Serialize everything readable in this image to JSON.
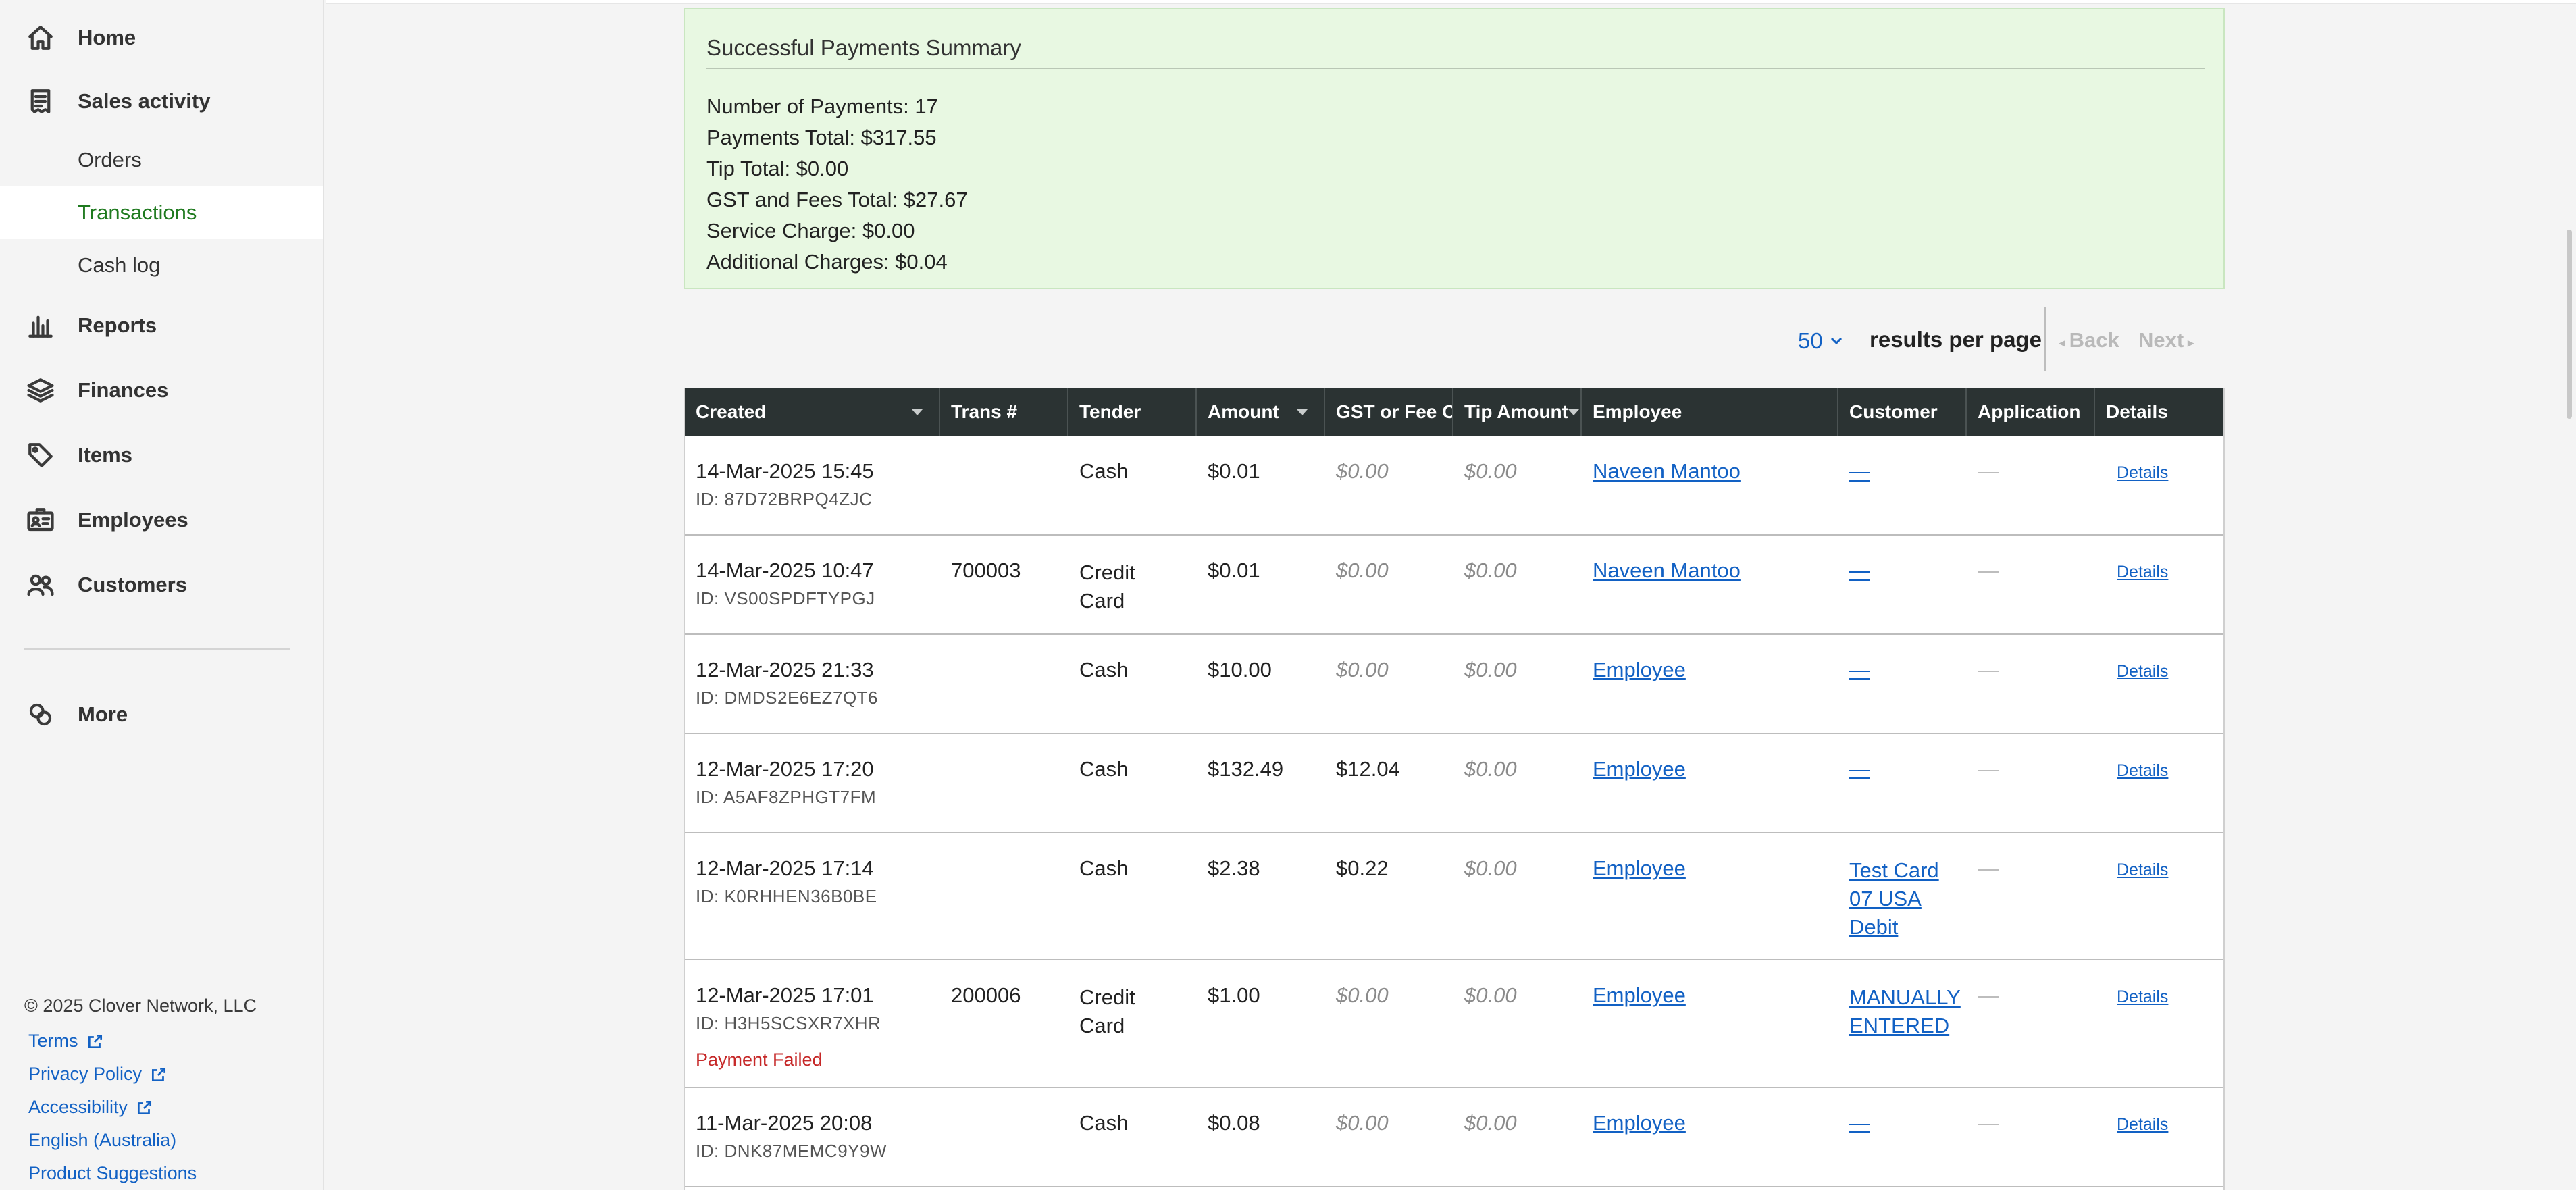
{
  "sidebar": {
    "items": [
      {
        "key": "home",
        "label": "Home",
        "icon": "home-icon"
      },
      {
        "key": "sales",
        "label": "Sales activity",
        "icon": "receipt-icon"
      },
      {
        "key": "reports",
        "label": "Reports",
        "icon": "bar-chart-icon"
      },
      {
        "key": "finances",
        "label": "Finances",
        "icon": "layers-icon"
      },
      {
        "key": "items",
        "label": "Items",
        "icon": "tag-icon"
      },
      {
        "key": "employees",
        "label": "Employees",
        "icon": "id-card-icon"
      },
      {
        "key": "customers",
        "label": "Customers",
        "icon": "people-icon"
      },
      {
        "key": "more",
        "label": "More",
        "icon": "apps-icon"
      }
    ],
    "sales_sub": [
      {
        "label": "Orders",
        "active": false
      },
      {
        "label": "Transactions",
        "active": true
      },
      {
        "label": "Cash log",
        "active": false
      }
    ],
    "footer": {
      "copyright": "© 2025 Clover Network, LLC",
      "links": [
        "Terms",
        "Privacy Policy",
        "Accessibility",
        "English (Australia)",
        "Product Suggestions"
      ]
    }
  },
  "summary": {
    "title": "Successful Payments Summary",
    "lines": [
      "Number of Payments: 17",
      "Payments Total: $317.55",
      "Tip Total: $0.00",
      "GST and Fees Total: $27.67",
      "Service Charge: $0.00",
      "Additional Charges: $0.04"
    ]
  },
  "pager": {
    "per_page_value": "50",
    "per_page_label": "results per page",
    "back": "Back",
    "next": "Next"
  },
  "table": {
    "columns": [
      "Created",
      "Trans #",
      "Tender",
      "Amount",
      "GST or Fee Co",
      "Tip Amount",
      "Employee",
      "Customer",
      "Application",
      "Details"
    ],
    "rows": [
      {
        "created": "14-Mar-2025 15:45",
        "id": "ID: 87D72BRPQ4ZJC",
        "trans": "",
        "tender": "Cash",
        "amount": "$0.01",
        "gst": "$0.00",
        "tip": "$0.00",
        "employee": "Naveen Mantoo",
        "customer": "—",
        "application": "—",
        "details": "Details",
        "note": ""
      },
      {
        "created": "14-Mar-2025 10:47",
        "id": "ID: VS00SPDFTYPGJ",
        "trans": "700003",
        "tender": "Credit Card",
        "amount": "$0.01",
        "gst": "$0.00",
        "tip": "$0.00",
        "employee": "Naveen Mantoo",
        "customer": "—",
        "application": "—",
        "details": "Details",
        "note": ""
      },
      {
        "created": "12-Mar-2025 21:33",
        "id": "ID: DMDS2E6EZ7QT6",
        "trans": "",
        "tender": "Cash",
        "amount": "$10.00",
        "gst": "$0.00",
        "tip": "$0.00",
        "employee": "Employee",
        "customer": "—",
        "application": "—",
        "details": "Details",
        "note": ""
      },
      {
        "created": "12-Mar-2025 17:20",
        "id": "ID: A5AF8ZPHGT7FM",
        "trans": "",
        "tender": "Cash",
        "amount": "$132.49",
        "gst": "$12.04",
        "tip": "$0.00",
        "employee": "Employee",
        "customer": "—",
        "application": "—",
        "details": "Details",
        "note": ""
      },
      {
        "created": "12-Mar-2025 17:14",
        "id": "ID: K0RHHEN36B0BE",
        "trans": "",
        "tender": "Cash",
        "amount": "$2.38",
        "gst": "$0.22",
        "tip": "$0.00",
        "employee": "Employee",
        "customer": "Test Card 07 USA Debit",
        "application": "—",
        "details": "Details",
        "note": ""
      },
      {
        "created": "12-Mar-2025 17:01",
        "id": "ID: H3H5SCSXR7XHR",
        "trans": "200006",
        "tender": "Credit Card",
        "amount": "$1.00",
        "gst": "$0.00",
        "tip": "$0.00",
        "employee": "Employee",
        "customer": "MANUALLY ENTERED",
        "application": "—",
        "details": "Details",
        "note": "Payment Failed"
      },
      {
        "created": "11-Mar-2025 20:08",
        "id": "ID: DNK87MEMC9Y9W",
        "trans": "",
        "tender": "Cash",
        "amount": "$0.08",
        "gst": "$0.00",
        "tip": "$0.00",
        "employee": "Employee",
        "customer": "—",
        "application": "—",
        "details": "Details",
        "note": ""
      }
    ]
  }
}
